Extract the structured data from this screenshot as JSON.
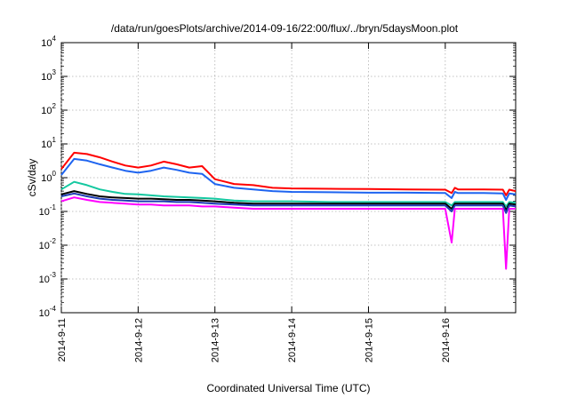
{
  "chart_data": {
    "type": "line",
    "title": "/data/run/goesPlots/archive/2014-09-16/22:00/flux/../bryn/5daysMoon.plot",
    "xlabel": "Coordinated Universal Time (UTC)",
    "ylabel": "cSv/day",
    "yscale": "log",
    "ylim": [
      0.0001,
      10000
    ],
    "xlim": [
      "2014-09-11 00:00",
      "2014-09-16 22:00"
    ],
    "y_ticks": [
      {
        "base": "10",
        "exp": "-4"
      },
      {
        "base": "10",
        "exp": "-3"
      },
      {
        "base": "10",
        "exp": "-2"
      },
      {
        "base": "10",
        "exp": "-1"
      },
      {
        "base": "10",
        "exp": "0"
      },
      {
        "base": "10",
        "exp": "1"
      },
      {
        "base": "10",
        "exp": "2"
      },
      {
        "base": "10",
        "exp": "3"
      },
      {
        "base": "10",
        "exp": "4"
      }
    ],
    "x_ticks": [
      "2014-9-11",
      "2014-9-12",
      "2014-9-13",
      "2014-9-14",
      "2014-9-15",
      "2014-9-16"
    ],
    "grid": true,
    "legend": "none",
    "x": [
      "2014-09-11 00:00",
      "2014-09-11 04:00",
      "2014-09-11 08:00",
      "2014-09-11 12:00",
      "2014-09-11 16:00",
      "2014-09-11 20:00",
      "2014-09-12 00:00",
      "2014-09-12 04:00",
      "2014-09-12 08:00",
      "2014-09-12 12:00",
      "2014-09-12 16:00",
      "2014-09-12 20:00",
      "2014-09-13 00:00",
      "2014-09-13 06:00",
      "2014-09-13 12:00",
      "2014-09-13 18:00",
      "2014-09-14 00:00",
      "2014-09-14 12:00",
      "2014-09-15 00:00",
      "2014-09-15 12:00",
      "2014-09-16 00:00",
      "2014-09-16 02:00",
      "2014-09-16 03:00",
      "2014-09-16 04:00",
      "2014-09-16 12:00",
      "2014-09-16 18:00",
      "2014-09-16 19:00",
      "2014-09-16 20:00",
      "2014-09-16 22:00"
    ],
    "series": [
      {
        "color": "#ff0000",
        "values": [
          1.8,
          5.5,
          5.0,
          4.0,
          3.0,
          2.3,
          2.0,
          2.3,
          3.0,
          2.5,
          2.0,
          2.2,
          0.9,
          0.65,
          0.6,
          0.5,
          0.48,
          0.47,
          0.46,
          0.45,
          0.44,
          0.35,
          0.5,
          0.45,
          0.45,
          0.44,
          0.3,
          0.44,
          0.4
        ]
      },
      {
        "color": "#1e64f0",
        "values": [
          1.2,
          3.6,
          3.2,
          2.5,
          2.0,
          1.6,
          1.4,
          1.6,
          2.0,
          1.7,
          1.4,
          1.3,
          0.65,
          0.5,
          0.45,
          0.4,
          0.38,
          0.37,
          0.36,
          0.36,
          0.35,
          0.25,
          0.38,
          0.35,
          0.35,
          0.34,
          0.22,
          0.34,
          0.32
        ]
      },
      {
        "color": "#14c8a0",
        "values": [
          0.45,
          0.75,
          0.6,
          0.45,
          0.38,
          0.33,
          0.32,
          0.3,
          0.28,
          0.27,
          0.26,
          0.25,
          0.24,
          0.21,
          0.2,
          0.2,
          0.2,
          0.19,
          0.19,
          0.19,
          0.19,
          0.15,
          0.19,
          0.19,
          0.19,
          0.19,
          0.14,
          0.19,
          0.18
        ]
      },
      {
        "color": "#000000",
        "values": [
          0.32,
          0.4,
          0.33,
          0.28,
          0.26,
          0.25,
          0.24,
          0.24,
          0.23,
          0.22,
          0.22,
          0.21,
          0.2,
          0.18,
          0.17,
          0.17,
          0.17,
          0.17,
          0.17,
          0.17,
          0.17,
          0.12,
          0.17,
          0.17,
          0.17,
          0.17,
          0.11,
          0.17,
          0.16
        ]
      },
      {
        "color": "#1e3cb4",
        "values": [
          0.28,
          0.34,
          0.28,
          0.24,
          0.22,
          0.21,
          0.2,
          0.2,
          0.2,
          0.19,
          0.19,
          0.18,
          0.17,
          0.16,
          0.15,
          0.15,
          0.15,
          0.15,
          0.15,
          0.15,
          0.15,
          0.1,
          0.15,
          0.15,
          0.15,
          0.15,
          0.09,
          0.15,
          0.14
        ]
      },
      {
        "color": "#ff00ff",
        "values": [
          0.2,
          0.26,
          0.22,
          0.19,
          0.18,
          0.17,
          0.16,
          0.16,
          0.15,
          0.15,
          0.15,
          0.14,
          0.14,
          0.13,
          0.12,
          0.12,
          0.12,
          0.12,
          0.12,
          0.12,
          0.12,
          0.012,
          0.12,
          0.12,
          0.12,
          0.12,
          0.002,
          0.12,
          0.12
        ]
      }
    ]
  }
}
